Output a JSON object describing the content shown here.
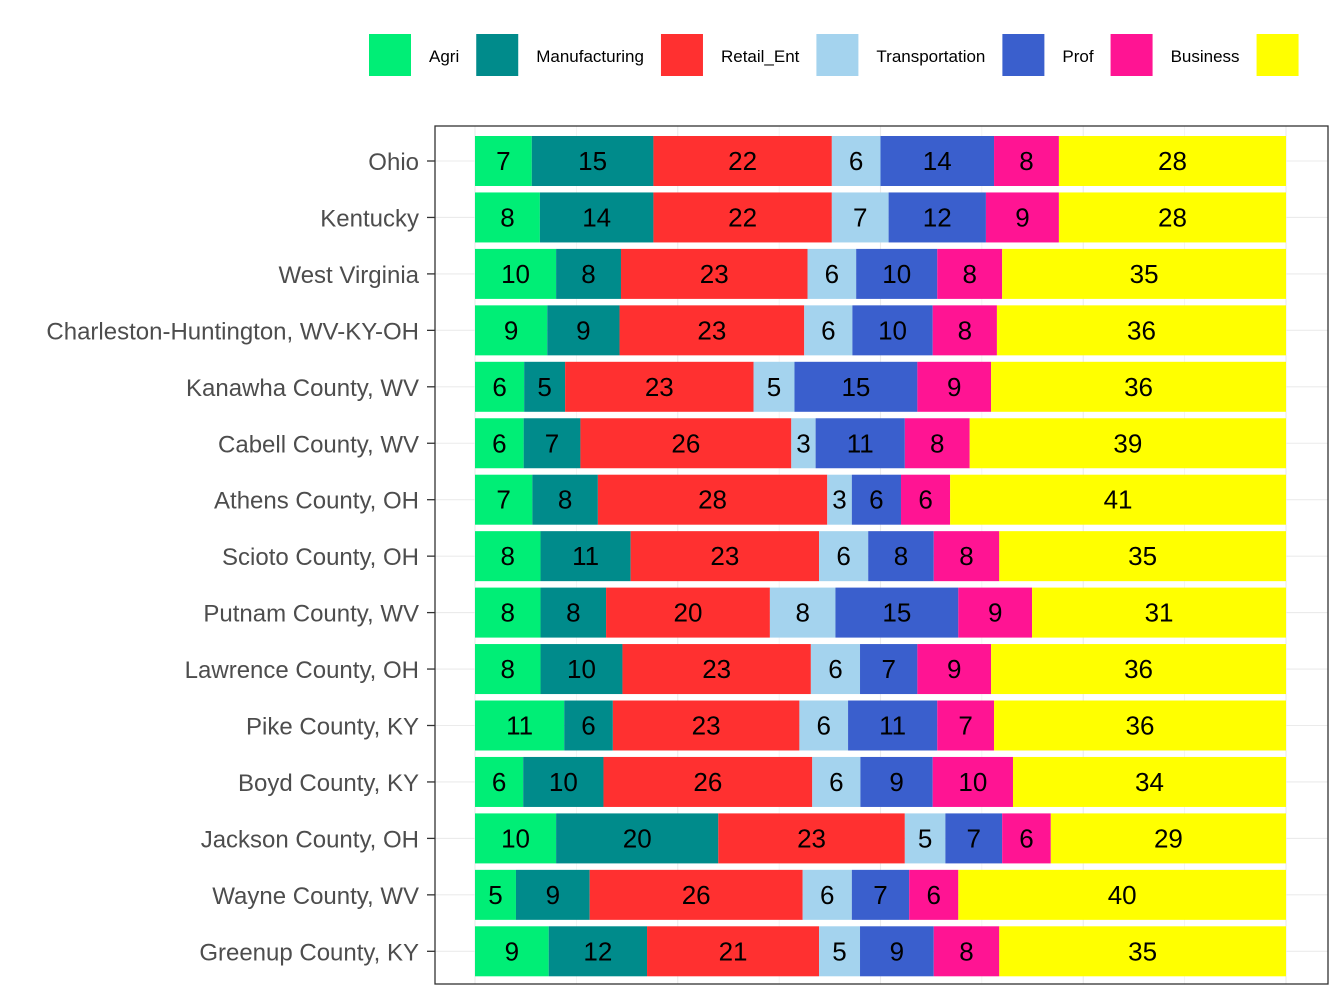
{
  "chart_data": {
    "type": "bar",
    "orientation": "horizontal",
    "stacked": true,
    "normalized_percent": true,
    "categories": [
      "Ohio",
      "Kentucky",
      "West Virginia",
      "Charleston-Huntington, WV-KY-OH",
      "Kanawha County, WV",
      "Cabell County, WV",
      "Athens County, OH",
      "Scioto County, OH",
      "Putnam County, WV",
      "Lawrence County, OH",
      "Pike County, KY",
      "Boyd County, KY",
      "Jackson County, OH",
      "Wayne County, WV",
      "Greenup County, KY"
    ],
    "series": [
      {
        "name": "Agri",
        "color": "#00EE76",
        "values": [
          7,
          8,
          10,
          9,
          6,
          6,
          7,
          8,
          8,
          8,
          11,
          6,
          10,
          5,
          9
        ]
      },
      {
        "name": "Manufacturing",
        "color": "#008B8B",
        "values": [
          15,
          14,
          8,
          9,
          5,
          7,
          8,
          11,
          8,
          10,
          6,
          10,
          20,
          9,
          12
        ]
      },
      {
        "name": "Retail_Ent",
        "color": "#FF3030",
        "values": [
          22,
          22,
          23,
          23,
          23,
          26,
          28,
          23,
          20,
          23,
          23,
          26,
          23,
          26,
          21
        ]
      },
      {
        "name": "Transportation",
        "color": "#A4D3EE",
        "values": [
          6,
          7,
          6,
          6,
          5,
          3,
          3,
          6,
          8,
          6,
          6,
          6,
          5,
          6,
          5
        ]
      },
      {
        "name": "Prof",
        "color": "#3A5FCD",
        "values": [
          14,
          12,
          10,
          10,
          15,
          11,
          6,
          8,
          15,
          7,
          11,
          9,
          7,
          7,
          9
        ]
      },
      {
        "name": "Business",
        "color": "#FF1493",
        "values": [
          8,
          9,
          8,
          8,
          9,
          8,
          6,
          8,
          9,
          9,
          7,
          10,
          6,
          6,
          8
        ]
      },
      {
        "name": "",
        "color": "#FFFF00",
        "values": [
          28,
          28,
          35,
          36,
          36,
          39,
          41,
          35,
          31,
          36,
          36,
          34,
          29,
          40,
          35
        ]
      }
    ],
    "title": "",
    "xlabel": "",
    "ylabel": "",
    "legend_position": "top",
    "grid": true
  }
}
